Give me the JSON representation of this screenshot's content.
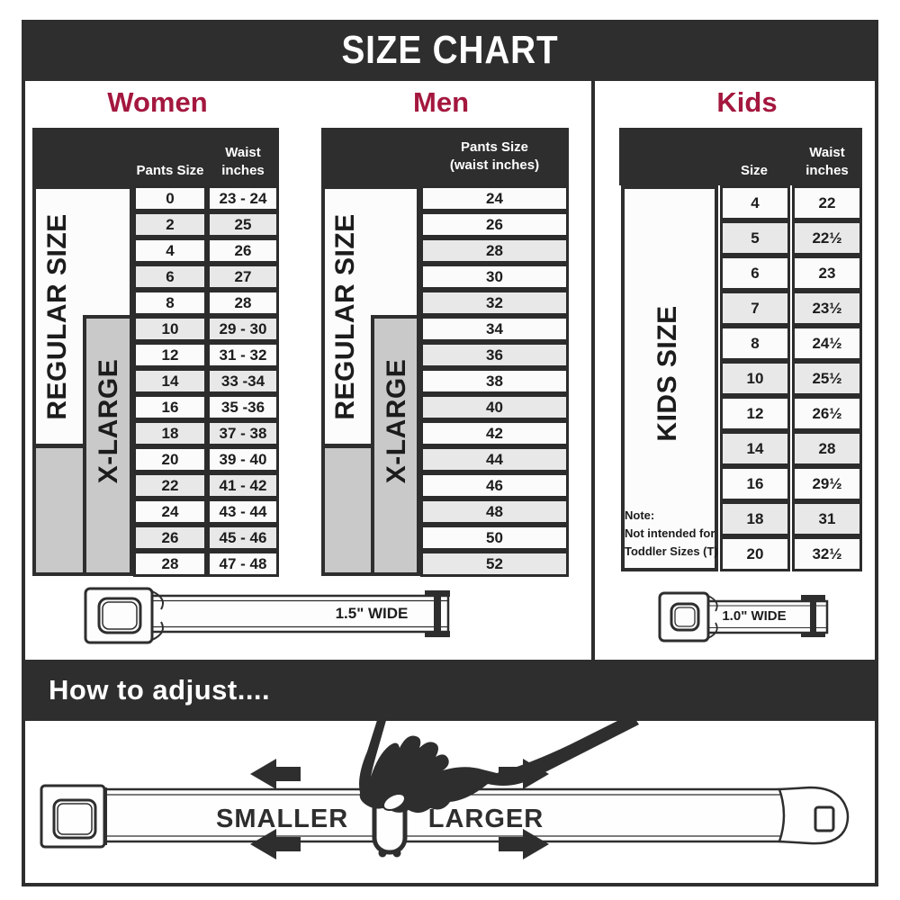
{
  "title": "SIZE CHART",
  "colors": {
    "dark": "#2e2e2e",
    "accent": "#a4173e",
    "row_shaded": "#e8e8e8",
    "row_plain": "#fbfbfb",
    "xlarge_gray": "#c9c9c9"
  },
  "women": {
    "label": "Women",
    "header_pants": "Pants Size",
    "header_waist": "Waist inches",
    "regular_label": "REGULAR SIZE",
    "xlarge_label": "X-LARGE",
    "rows": [
      [
        "0",
        "23 - 24"
      ],
      [
        "2",
        "25"
      ],
      [
        "4",
        "26"
      ],
      [
        "6",
        "27"
      ],
      [
        "8",
        "28"
      ],
      [
        "10",
        "29 - 30"
      ],
      [
        "12",
        "31 - 32"
      ],
      [
        "14",
        "33 -34"
      ],
      [
        "16",
        "35 -36"
      ],
      [
        "18",
        "37 - 38"
      ],
      [
        "20",
        "39 - 40"
      ],
      [
        "22",
        "41 - 42"
      ],
      [
        "24",
        "43 - 44"
      ],
      [
        "26",
        "45 - 46"
      ],
      [
        "28",
        "47 - 48"
      ]
    ]
  },
  "men": {
    "label": "Men",
    "header_line1": "Pants Size",
    "header_line2": "(waist inches)",
    "regular_label": "REGULAR SIZE",
    "xlarge_label": "X-LARGE",
    "rows": [
      "24",
      "26",
      "28",
      "30",
      "32",
      "34",
      "36",
      "38",
      "40",
      "42",
      "44",
      "46",
      "48",
      "50",
      "52"
    ]
  },
  "kids": {
    "label": "Kids",
    "header_size": "Size",
    "header_waist": "Waist inches",
    "side_label": "KIDS SIZE",
    "note_line1": "Note:",
    "note_line2": "Not intended for",
    "note_line3": "Toddler Sizes (T)",
    "rows": [
      [
        "4",
        "22"
      ],
      [
        "5",
        "22½"
      ],
      [
        "6",
        "23"
      ],
      [
        "7",
        "23½"
      ],
      [
        "8",
        "24½"
      ],
      [
        "10",
        "25½"
      ],
      [
        "12",
        "26½"
      ],
      [
        "14",
        "28"
      ],
      [
        "16",
        "29½"
      ],
      [
        "18",
        "31"
      ],
      [
        "20",
        "32½"
      ]
    ]
  },
  "belts": {
    "adult_width_label": "1.5\" WIDE",
    "kids_width_label": "1.0\" WIDE"
  },
  "adjust": {
    "heading": "How to adjust....",
    "smaller_label": "SMALLER",
    "larger_label": "LARGER"
  }
}
